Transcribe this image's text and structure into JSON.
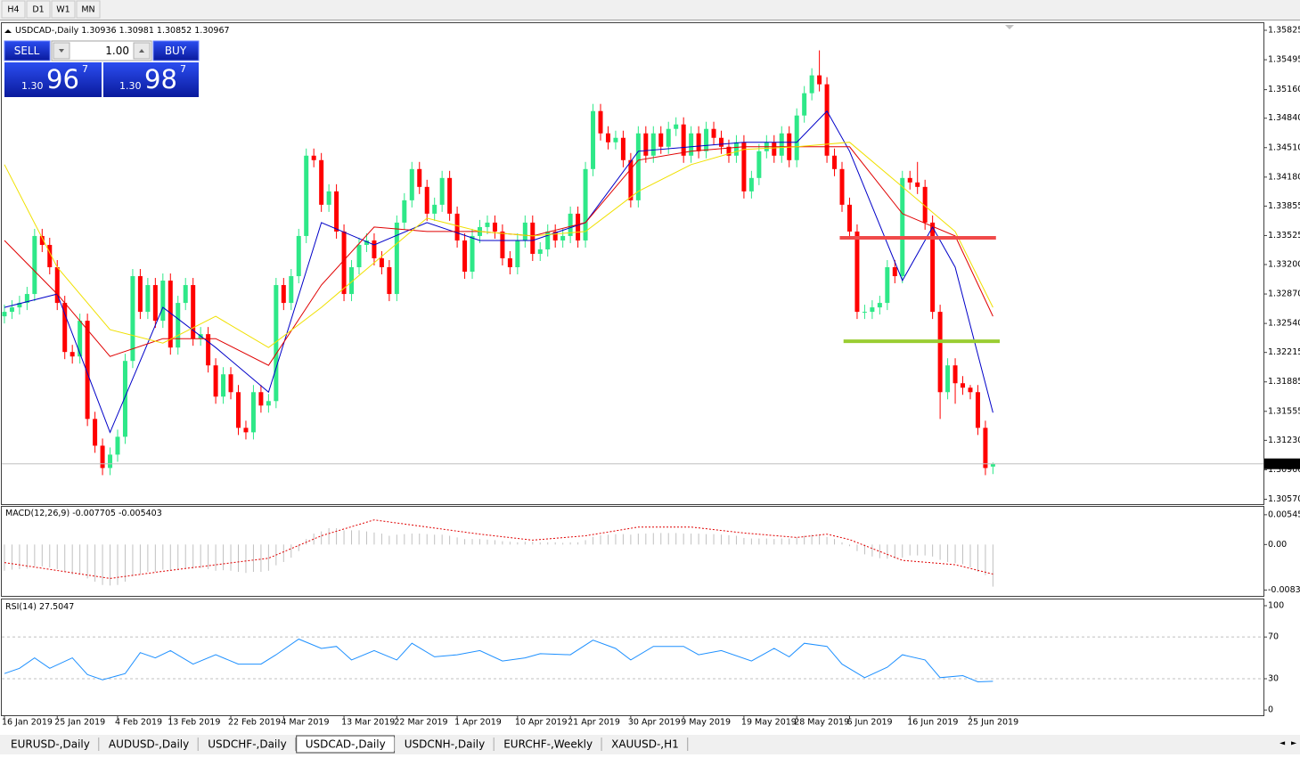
{
  "toolbar": {
    "buttons": [
      "H4",
      "D1",
      "W1",
      "MN"
    ]
  },
  "trade_panel": {
    "sell": "SELL",
    "buy": "BUY",
    "volume": "1.00",
    "bid": {
      "big": "1.30",
      "pips": "96",
      "point": "7"
    },
    "ask": {
      "big": "1.30",
      "pips": "98",
      "point": "7"
    }
  },
  "tabs": {
    "items": [
      "EURUSD-,Daily",
      "AUDUSD-,Daily",
      "USDCHF-,Daily",
      "USDCAD-,Daily",
      "USDCNH-,Daily",
      "EURCHF-,Weekly",
      "XAUUSD-,H1"
    ],
    "active": 3
  },
  "chart_data": [
    {
      "type": "candlestick",
      "symbol": "USDCAD-,Daily",
      "up_color": "#2ee888",
      "down_color": "#ff0000",
      "open": [
        1.3262,
        1.3267,
        1.3272,
        1.3277,
        1.3287,
        1.3352,
        1.3342,
        1.3317,
        1.3277,
        1.3222,
        1.3217,
        1.3257,
        1.3147,
        1.3117,
        1.3092,
        1.3107,
        1.3127,
        1.3212,
        1.3307,
        1.3267,
        1.3297,
        1.3257,
        1.3302,
        1.3227,
        1.3277,
        1.3297,
        1.3237,
        1.3242,
        1.3207,
        1.3172,
        1.3197,
        1.3177,
        1.3137,
        1.3132,
        1.3177,
        1.3162,
        1.3167,
        1.3297,
        1.3277,
        1.3307,
        1.3352,
        1.3442,
        1.3437,
        1.3387,
        1.3402,
        1.3357,
        1.3287,
        1.3317,
        1.3342,
        1.3347,
        1.3327,
        1.3317,
        1.3287,
        1.3367,
        1.3392,
        1.3427,
        1.3407,
        1.3377,
        1.3387,
        1.3417,
        1.3377,
        1.3347,
        1.3312,
        1.3352,
        1.3362,
        1.3367,
        1.3357,
        1.3327,
        1.3317,
        1.3347,
        1.3367,
        1.3332,
        1.3337,
        1.3357,
        1.3347,
        1.3352,
        1.3377,
        1.3347,
        1.3427,
        1.3492,
        1.3467,
        1.3457,
        1.3462,
        1.3437,
        1.3392,
        1.3467,
        1.3442,
        1.3467,
        1.3452,
        1.3472,
        1.3477,
        1.3442,
        1.3467,
        1.3447,
        1.3472,
        1.3462,
        1.3452,
        1.3442,
        1.3457,
        1.3402,
        1.3417,
        1.3447,
        1.3457,
        1.3442,
        1.3467,
        1.3437,
        1.3487,
        1.3512,
        1.3532,
        1.3522,
        1.3442,
        1.3427,
        1.3387,
        1.3357,
        1.3267,
        1.3267,
        1.3272,
        1.3277,
        1.3317,
        1.3307,
        1.3417,
        1.3412,
        1.3407,
        1.3367,
        1.3267,
        1.3177,
        1.3207,
        1.3187,
        1.3182,
        1.3177,
        1.3137,
        1.30936
      ],
      "high": [
        1.3275,
        1.328,
        1.3285,
        1.3295,
        1.336,
        1.336,
        1.335,
        1.3325,
        1.3285,
        1.323,
        1.3265,
        1.3265,
        1.3155,
        1.3125,
        1.3115,
        1.3135,
        1.322,
        1.3315,
        1.3315,
        1.3305,
        1.3305,
        1.331,
        1.331,
        1.3285,
        1.3305,
        1.3305,
        1.325,
        1.325,
        1.3215,
        1.3205,
        1.3205,
        1.3185,
        1.3145,
        1.3185,
        1.3185,
        1.3175,
        1.3305,
        1.3305,
        1.3315,
        1.336,
        1.345,
        1.345,
        1.3445,
        1.341,
        1.341,
        1.3365,
        1.3325,
        1.335,
        1.3355,
        1.3355,
        1.3335,
        1.3325,
        1.3375,
        1.34,
        1.3435,
        1.3435,
        1.3415,
        1.3395,
        1.3425,
        1.3425,
        1.3385,
        1.3355,
        1.336,
        1.337,
        1.3375,
        1.3375,
        1.3365,
        1.3335,
        1.3355,
        1.3375,
        1.3375,
        1.3345,
        1.3365,
        1.3365,
        1.336,
        1.3385,
        1.3385,
        1.3435,
        1.35,
        1.35,
        1.3475,
        1.347,
        1.347,
        1.3445,
        1.3475,
        1.3475,
        1.3475,
        1.3475,
        1.348,
        1.3485,
        1.3485,
        1.3475,
        1.3475,
        1.348,
        1.348,
        1.347,
        1.346,
        1.3465,
        1.3465,
        1.3425,
        1.3455,
        1.3465,
        1.3465,
        1.3475,
        1.3475,
        1.3495,
        1.352,
        1.354,
        1.356,
        1.353,
        1.345,
        1.3435,
        1.3395,
        1.3365,
        1.3275,
        1.328,
        1.3285,
        1.3325,
        1.3325,
        1.3425,
        1.3425,
        1.3435,
        1.3415,
        1.3375,
        1.3275,
        1.3215,
        1.3215,
        1.3195,
        1.3185,
        1.3185,
        1.3145,
        1.30981
      ],
      "low": [
        1.3254,
        1.3259,
        1.3264,
        1.3269,
        1.3279,
        1.3334,
        1.3309,
        1.3269,
        1.3214,
        1.3209,
        1.3209,
        1.3139,
        1.3109,
        1.3084,
        1.3084,
        1.3099,
        1.3119,
        1.3204,
        1.3259,
        1.3259,
        1.3249,
        1.3249,
        1.3219,
        1.3219,
        1.3269,
        1.3229,
        1.3229,
        1.3199,
        1.3164,
        1.3164,
        1.3169,
        1.3129,
        1.3124,
        1.3124,
        1.3154,
        1.3154,
        1.3159,
        1.3269,
        1.3269,
        1.3299,
        1.3344,
        1.3429,
        1.3379,
        1.3379,
        1.3349,
        1.3279,
        1.3279,
        1.3309,
        1.3334,
        1.3319,
        1.3309,
        1.3279,
        1.3279,
        1.3359,
        1.3384,
        1.3399,
        1.3369,
        1.3369,
        1.3379,
        1.3369,
        1.3339,
        1.3304,
        1.3304,
        1.3344,
        1.3354,
        1.3349,
        1.3319,
        1.3309,
        1.3309,
        1.3339,
        1.3324,
        1.3324,
        1.3329,
        1.3339,
        1.3339,
        1.3344,
        1.3339,
        1.3339,
        1.3419,
        1.3459,
        1.3449,
        1.3449,
        1.3429,
        1.3384,
        1.3384,
        1.3434,
        1.3434,
        1.3444,
        1.3444,
        1.3464,
        1.3434,
        1.3434,
        1.3439,
        1.3439,
        1.3454,
        1.3444,
        1.3434,
        1.3434,
        1.3394,
        1.3394,
        1.3409,
        1.3439,
        1.3434,
        1.3434,
        1.3429,
        1.3429,
        1.3479,
        1.3504,
        1.3514,
        1.3434,
        1.3419,
        1.3379,
        1.3349,
        1.3259,
        1.3259,
        1.3259,
        1.3264,
        1.3269,
        1.3299,
        1.3299,
        1.3404,
        1.3399,
        1.3359,
        1.3259,
        1.3147,
        1.3169,
        1.3164,
        1.3174,
        1.3169,
        1.3129,
        1.3084,
        1.30852
      ],
      "close": [
        1.3267,
        1.3272,
        1.3277,
        1.3287,
        1.3352,
        1.3342,
        1.3317,
        1.3277,
        1.3222,
        1.3217,
        1.3257,
        1.3147,
        1.3117,
        1.3092,
        1.3107,
        1.3127,
        1.3212,
        1.3307,
        1.3267,
        1.3297,
        1.3257,
        1.3302,
        1.3227,
        1.3277,
        1.3297,
        1.3237,
        1.3242,
        1.3207,
        1.3172,
        1.3197,
        1.3177,
        1.3137,
        1.3132,
        1.3177,
        1.3162,
        1.3167,
        1.3297,
        1.3277,
        1.3307,
        1.3352,
        1.3442,
        1.3437,
        1.3387,
        1.3402,
        1.3357,
        1.3287,
        1.3317,
        1.3342,
        1.3347,
        1.3327,
        1.3317,
        1.3287,
        1.3367,
        1.3392,
        1.3427,
        1.3407,
        1.3377,
        1.3387,
        1.3417,
        1.3377,
        1.3347,
        1.3312,
        1.3352,
        1.3362,
        1.3367,
        1.3357,
        1.3327,
        1.3317,
        1.3347,
        1.3367,
        1.3332,
        1.3337,
        1.3357,
        1.3347,
        1.3352,
        1.3377,
        1.3347,
        1.3427,
        1.3492,
        1.3467,
        1.3457,
        1.3462,
        1.3437,
        1.3392,
        1.3467,
        1.3442,
        1.3467,
        1.3452,
        1.3472,
        1.3477,
        1.3442,
        1.3467,
        1.3447,
        1.3472,
        1.3462,
        1.3452,
        1.3442,
        1.3457,
        1.3402,
        1.3417,
        1.3447,
        1.3457,
        1.3442,
        1.3467,
        1.3437,
        1.3487,
        1.3512,
        1.3532,
        1.3522,
        1.3442,
        1.3427,
        1.3387,
        1.3357,
        1.3267,
        1.3267,
        1.3272,
        1.3277,
        1.3317,
        1.3307,
        1.3417,
        1.3412,
        1.3407,
        1.3367,
        1.3267,
        1.3177,
        1.3207,
        1.3187,
        1.3182,
        1.3177,
        1.3137,
        1.3092,
        1.30967
      ],
      "series": [
        {
          "color": "#0000c8",
          "x": [
            0,
            7,
            14,
            21,
            28,
            35,
            42,
            49,
            56,
            63,
            70,
            77,
            84,
            91,
            98,
            105,
            109,
            112,
            119,
            123,
            126,
            131
          ],
          "values": [
            1.3272,
            1.3287,
            1.3132,
            1.3272,
            1.3227,
            1.3177,
            1.3367,
            1.3342,
            1.3367,
            1.3347,
            1.3347,
            1.3367,
            1.3447,
            1.3452,
            1.3457,
            1.3457,
            1.3492,
            1.3447,
            1.3302,
            1.3362,
            1.3317,
            1.3154
          ]
        },
        {
          "color": "#e00000",
          "x": [
            0,
            7,
            14,
            21,
            28,
            35,
            42,
            49,
            56,
            63,
            70,
            77,
            84,
            91,
            98,
            105,
            112,
            119,
            126,
            131
          ],
          "values": [
            1.3347,
            1.3287,
            1.3217,
            1.3237,
            1.3237,
            1.3207,
            1.3297,
            1.3362,
            1.3357,
            1.3357,
            1.3352,
            1.3367,
            1.3437,
            1.3447,
            1.3452,
            1.3452,
            1.3452,
            1.3377,
            1.3352,
            1.3262
          ]
        },
        {
          "color": "#f0e000",
          "x": [
            0,
            7,
            14,
            21,
            28,
            35,
            42,
            49,
            56,
            63,
            70,
            77,
            84,
            91,
            98,
            105,
            112,
            119,
            126,
            131
          ],
          "values": [
            1.3432,
            1.3317,
            1.3247,
            1.3232,
            1.3262,
            1.3227,
            1.3272,
            1.3322,
            1.3372,
            1.3357,
            1.3352,
            1.3357,
            1.3402,
            1.3432,
            1.3449,
            1.3452,
            1.3457,
            1.3407,
            1.3357,
            1.3272
          ]
        }
      ],
      "hlines": [
        {
          "value": 1.335,
          "color": "#f04a4a",
          "x": [
            110.7,
            131.4
          ]
        },
        {
          "value": 1.3234,
          "color": "#9acd32",
          "x": [
            111.2,
            131.9
          ]
        }
      ],
      "xlim": [
        -0.35,
        166.85
      ],
      "ylim": [
        1.30515,
        1.35905
      ],
      "yticks": [
        1.35825,
        1.35495,
        {
          "value": 1.3516,
          "label": "1.35160"
        },
        {
          "value": 1.3484,
          "label": "1.34840"
        },
        {
          "value": 1.3451,
          "label": "1.34510"
        },
        {
          "value": 1.3418,
          "label": "1.34180"
        },
        1.33855,
        1.33525,
        {
          "value": 1.332,
          "label": "1.33200"
        },
        {
          "value": 1.3287,
          "label": "1.32870"
        },
        {
          "value": 1.3254,
          "label": "1.32540"
        },
        1.32215,
        1.31885,
        1.31555,
        {
          "value": 1.3123,
          "label": "1.31230"
        },
        {
          "value": 1.309,
          "label": "1.30900"
        },
        {
          "value": 1.3057,
          "label": "1.30570"
        }
      ],
      "xticks": [
        {
          "value": 0,
          "label": "16 Jan 2019"
        },
        {
          "value": 7,
          "label": "25 Jan 2019"
        },
        {
          "value": 15,
          "label": "4 Feb 2019"
        },
        {
          "value": 22,
          "label": "13 Feb 2019"
        },
        {
          "value": 30,
          "label": "22 Feb 2019"
        },
        {
          "value": 37,
          "label": "4 Mar 2019"
        },
        {
          "value": 45,
          "label": "13 Mar 2019"
        },
        {
          "value": 52,
          "label": "22 Mar 2019"
        },
        {
          "value": 60,
          "label": "1 Apr 2019"
        },
        {
          "value": 68,
          "label": "10 Apr 2019"
        },
        {
          "value": 75,
          "label": "21 Apr 2019"
        },
        {
          "value": 83,
          "label": "30 Apr 2019"
        },
        {
          "value": 90,
          "label": "9 May 2019"
        },
        {
          "value": 98,
          "label": "19 May 2019"
        },
        {
          "value": 105,
          "label": "28 May 2019"
        },
        {
          "value": 112,
          "label": "6 Jun 2019"
        },
        {
          "value": 120,
          "label": "16 Jun 2019"
        },
        {
          "value": 128,
          "label": "25 Jun 2019"
        }
      ]
    },
    {
      "type": "macd",
      "title": "MACD(12,26,9)",
      "color": "#c0c0c0",
      "values": [
        -0.0048,
        -0.0046,
        -0.0045,
        -0.0044,
        -0.004,
        -0.004,
        -0.0042,
        -0.0045,
        -0.005,
        -0.0055,
        -0.0055,
        -0.0062,
        -0.0068,
        -0.0074,
        -0.0075,
        -0.0074,
        -0.0068,
        -0.0058,
        -0.0054,
        -0.005,
        -0.005,
        -0.0046,
        -0.0048,
        -0.0046,
        -0.0043,
        -0.0044,
        -0.0043,
        -0.0045,
        -0.0048,
        -0.0047,
        -0.0048,
        -0.005,
        -0.0052,
        -0.005,
        -0.005,
        -0.0048,
        -0.0038,
        -0.0032,
        -0.0024,
        -0.0012,
        0.001,
        0.002,
        0.0024,
        0.003,
        0.003,
        0.0026,
        0.0026,
        0.0026,
        0.0024,
        0.0022,
        0.002,
        0.0016,
        0.0018,
        0.0019,
        0.002,
        0.002,
        0.0019,
        0.0018,
        0.0018,
        0.0016,
        0.0013,
        0.001,
        0.001,
        0.001,
        0.0009,
        0.0008,
        0.0006,
        0.0005,
        0.0004,
        0.0005,
        0.0005,
        0.0004,
        0.0004,
        0.0004,
        0.0003,
        0.0004,
        0.0004,
        0.0008,
        0.0014,
        0.0017,
        0.0018,
        0.0019,
        0.0019,
        0.0018,
        0.002,
        0.002,
        0.0021,
        0.0021,
        0.0021,
        0.0021,
        0.002,
        0.002,
        0.002,
        0.0019,
        0.0019,
        0.0018,
        0.0017,
        0.0016,
        0.0012,
        0.0011,
        0.0011,
        0.0011,
        0.001,
        0.0011,
        0.0011,
        0.0013,
        0.0016,
        0.0018,
        0.0018,
        0.0014,
        0.001,
        0.0004,
        -0.0003,
        -0.0012,
        -0.0018,
        -0.0022,
        -0.0025,
        -0.0026,
        -0.0026,
        -0.0024,
        -0.002,
        -0.002,
        -0.002,
        -0.0022,
        -0.0028,
        -0.0032,
        -0.0034,
        -0.0036,
        -0.0042,
        -0.005,
        -0.0056,
        -0.007705
      ],
      "signal": {
        "color": "#e00000",
        "x": [
          0,
          14,
          21,
          35,
          42,
          49,
          56,
          63,
          70,
          77,
          84,
          91,
          98,
          105,
          109,
          112,
          119,
          126,
          131
        ],
        "values": [
          -0.0033,
          -0.0062,
          -0.0049,
          -0.0025,
          0.0016,
          0.0045,
          0.0032,
          0.0019,
          0.0008,
          0.0016,
          0.0032,
          0.0032,
          0.0021,
          0.0013,
          0.0019,
          0.0009,
          -0.0029,
          -0.0037,
          -0.005403
        ]
      },
      "xlim": [
        -0.35,
        166.85
      ],
      "ylim": [
        -0.0094,
        0.0069
      ],
      "yticks": [
        0.005454,
        {
          "value": 0,
          "label": "0.00"
        },
        -0.008332
      ]
    },
    {
      "type": "line",
      "title": "RSI(14)",
      "color": "#1e90ff",
      "x": [
        0,
        2,
        4,
        6,
        9,
        11,
        13,
        16,
        18,
        20,
        22,
        25,
        28,
        31,
        34,
        36,
        39,
        42,
        44,
        46,
        49,
        52,
        54,
        57,
        60,
        63,
        66,
        69,
        71,
        75,
        78,
        81,
        83,
        86,
        90,
        92,
        95,
        99,
        102,
        104,
        106,
        109,
        111,
        114,
        117,
        119,
        122,
        124,
        127,
        129,
        131
      ],
      "values": [
        35,
        40,
        50,
        40,
        50,
        34,
        29,
        35,
        55,
        50,
        57,
        44,
        53,
        44,
        44,
        53,
        68,
        59,
        61,
        48,
        57,
        48,
        64,
        51,
        53,
        57,
        47,
        50,
        54,
        53,
        67,
        59,
        48,
        61,
        61,
        53,
        57,
        47,
        59,
        51,
        64,
        61,
        44,
        31,
        41,
        53,
        48,
        31,
        33,
        27,
        27.5047
      ],
      "levels": [
        30,
        70
      ],
      "xlim": [
        -0.35,
        166.85
      ],
      "ylim": [
        -5,
        106
      ],
      "yticks": [
        100,
        70,
        30,
        0
      ]
    }
  ]
}
